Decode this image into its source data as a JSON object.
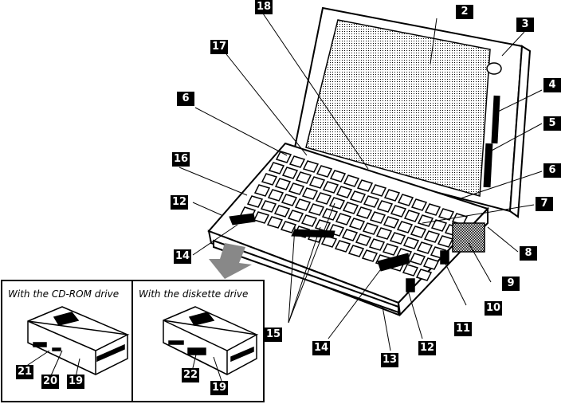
{
  "callouts": [
    "2",
    "3",
    "4",
    "5",
    "6",
    "6",
    "7",
    "8",
    "9",
    "10",
    "11",
    "12",
    "12",
    "13",
    "14",
    "14",
    "15",
    "16",
    "17",
    "18",
    "19",
    "19",
    "20",
    "21",
    "22"
  ],
  "insets": {
    "cdrom": "With the CD-ROM drive",
    "diskette": "With the diskette drive"
  }
}
